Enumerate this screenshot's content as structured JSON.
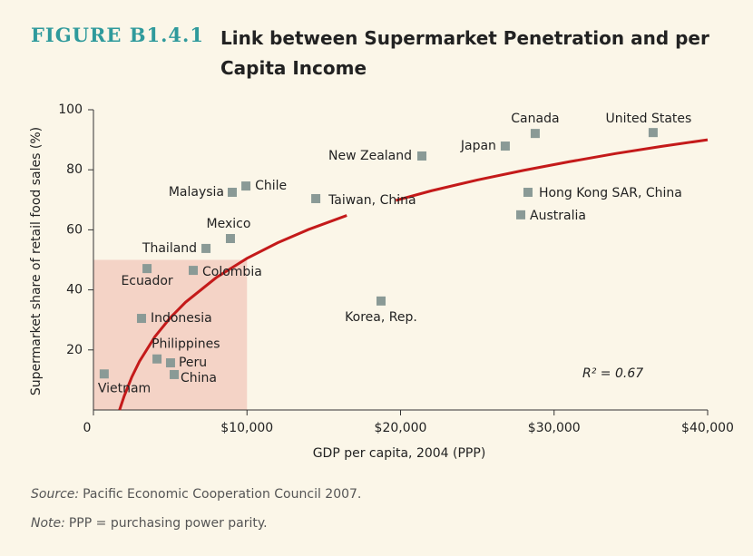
{
  "chart_data": {
    "type": "scatter",
    "figure_label": "FIGURE B1.4.1",
    "title": "Link between Supermarket Penetration and per Capita Income",
    "x_label": "GDP per capita, 2004 (PPP)",
    "y_label": "Supermarket share of retail food sales (%)",
    "annotation": "R² = 0.67",
    "xlim": [
      0,
      40000
    ],
    "ylim": [
      0,
      100
    ],
    "xticks": [
      0,
      {
        "value": 10000,
        "label": "$10,000"
      },
      {
        "value": 20000,
        "label": "$20,000"
      },
      {
        "value": 30000,
        "label": "$30,000"
      },
      {
        "value": 40000,
        "label": "$40,000"
      }
    ],
    "yticks": [
      20,
      40,
      60,
      80,
      100
    ],
    "color": "#8a9a96",
    "points": {
      "labels": [
        "Vietnam",
        "Philippines",
        "Peru",
        "China",
        "Indonesia",
        "Ecuador",
        "Colombia",
        "Thailand",
        "Mexico",
        "Malaysia",
        "Chile",
        "Taiwan, China",
        "Korea, Rep.",
        "New Zealand",
        "Japan",
        "Canada",
        "United States",
        "Hong Kong SAR, China",
        "Australia"
      ],
      "x": [
        700,
        4140,
        5020,
        5260,
        3130,
        3490,
        6500,
        7330,
        8920,
        9040,
        9930,
        14480,
        18730,
        21390,
        26820,
        28770,
        36450,
        28300,
        27830
      ],
      "values": [
        12,
        17,
        15.7,
        11.8,
        30.5,
        47.1,
        46.5,
        53.8,
        57.1,
        72.5,
        74.6,
        70.4,
        36.3,
        84.6,
        87.9,
        92.1,
        92.4,
        72.5,
        65
      ]
    },
    "trendline": {
      "color": "#c41a1a",
      "x": [
        1700,
        2000,
        2500,
        3000,
        4000,
        5000,
        6000,
        8000,
        10000,
        12000,
        14000,
        16500,
        18000,
        19700,
        22000,
        25000,
        28000,
        31000,
        34000,
        37000,
        40000
      ],
      "values": [
        0,
        4.6,
        11,
        16.2,
        24.4,
        30.7,
        35.9,
        44.1,
        50.5,
        55.7,
        60.1,
        64.8,
        null,
        69.8,
        73,
        76.6,
        79.8,
        82.7,
        85.4,
        87.8,
        90
      ]
    },
    "highlight": {
      "xlim": [
        0,
        10000
      ],
      "ylim": [
        0,
        50
      ],
      "color": "#f2cbbd"
    }
  },
  "notes": {
    "source_label": "Source:",
    "source": "Pacific Economic Cooperation Council 2007.",
    "note_label": "Note:",
    "note": "PPP = purchasing power parity."
  }
}
